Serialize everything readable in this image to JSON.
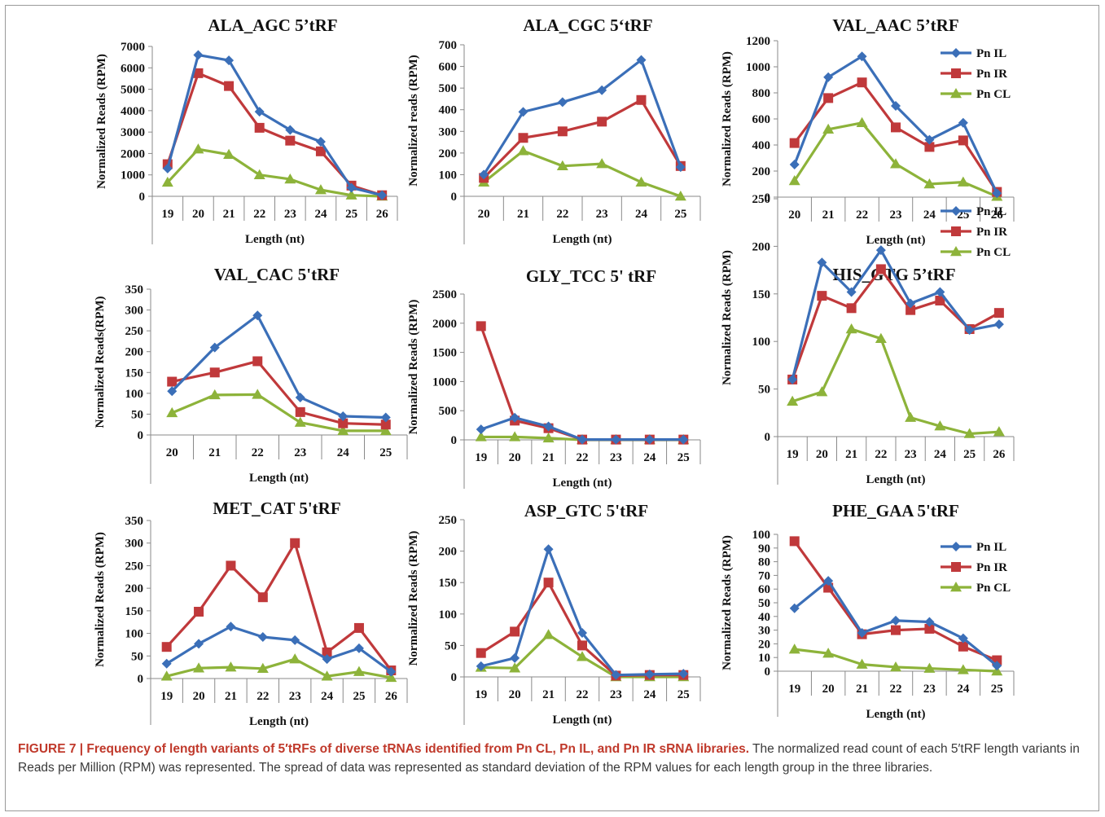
{
  "caption": {
    "bold": "FIGURE 7 | Frequency of length variants of 5′tRFs of diverse tRNAs identified from Pn CL, Pn IL, and Pn IR sRNA libraries.",
    "text": " The normalized read count of each 5′tRF length variants in Reads per Million (RPM) was represented. The spread of data was represented as standard deviation of the RPM values for each length group in the three libraries."
  },
  "series_colors": {
    "Pn IL": "#3b6fb8",
    "Pn IR": "#c0393b",
    "Pn CL": "#8db33a"
  },
  "chart_data": [
    {
      "type": "line",
      "title": "ALA_AGC  5’tRF",
      "xlabel": "Length (nt)",
      "ylabel": "Normalized Reads (RPM)",
      "categories": [
        "19",
        "20",
        "21",
        "22",
        "23",
        "24",
        "25",
        "26"
      ],
      "ylim": [
        0,
        7000
      ],
      "yticks": [
        0,
        1000,
        2000,
        3000,
        4000,
        5000,
        6000,
        7000
      ],
      "legend": "none",
      "series": [
        {
          "name": "Pn IL",
          "values": [
            1300,
            6600,
            6350,
            3950,
            3100,
            2550,
            400,
            50
          ]
        },
        {
          "name": "Pn IR",
          "values": [
            1500,
            5750,
            5150,
            3200,
            2600,
            2100,
            500,
            50
          ]
        },
        {
          "name": "Pn CL",
          "values": [
            650,
            2200,
            1950,
            1000,
            800,
            300,
            50,
            0
          ]
        }
      ]
    },
    {
      "type": "line",
      "title": "ALA_CGC 5‘tRF",
      "xlabel": "Length (nt)",
      "ylabel": "Normalized reads (RPM)",
      "categories": [
        "20",
        "21",
        "22",
        "23",
        "24",
        "25"
      ],
      "ylim": [
        0,
        700
      ],
      "yticks": [
        0,
        100,
        200,
        300,
        400,
        500,
        600,
        700
      ],
      "legend": "none",
      "series": [
        {
          "name": "Pn IL",
          "values": [
            100,
            390,
            435,
            490,
            630,
            135
          ]
        },
        {
          "name": "Pn IR",
          "values": [
            85,
            270,
            300,
            345,
            445,
            140
          ]
        },
        {
          "name": "Pn CL",
          "values": [
            65,
            210,
            140,
            150,
            65,
            0
          ]
        }
      ]
    },
    {
      "type": "line",
      "title": "VAL_AAC  5’tRF",
      "xlabel": "Length (nt)",
      "ylabel": "Normalized Reads (RPM)",
      "categories": [
        "20",
        "21",
        "22",
        "23",
        "24",
        "25",
        "26"
      ],
      "ylim": [
        0,
        1200
      ],
      "yticks": [
        0,
        200,
        400,
        600,
        800,
        1000,
        1200
      ],
      "legend": "top-right",
      "series": [
        {
          "name": "Pn IL",
          "values": [
            250,
            920,
            1080,
            700,
            440,
            570,
            30
          ]
        },
        {
          "name": "Pn IR",
          "values": [
            415,
            760,
            880,
            535,
            385,
            435,
            40
          ]
        },
        {
          "name": "Pn CL",
          "values": [
            125,
            520,
            570,
            255,
            100,
            115,
            5
          ]
        }
      ]
    },
    {
      "type": "line",
      "title": "VAL_CAC 5'tRF",
      "xlabel": "Length (nt)",
      "ylabel": "Normalized Reads(RPM)",
      "categories": [
        "20",
        "21",
        "22",
        "23",
        "24",
        "25"
      ],
      "ylim": [
        0,
        350
      ],
      "yticks": [
        0,
        50,
        100,
        150,
        200,
        250,
        300,
        350
      ],
      "legend": "none",
      "series": [
        {
          "name": "Pn IL",
          "values": [
            105,
            210,
            287,
            90,
            45,
            42
          ]
        },
        {
          "name": "Pn IR",
          "values": [
            128,
            150,
            177,
            55,
            28,
            25
          ]
        },
        {
          "name": "Pn CL",
          "values": [
            53,
            96,
            97,
            30,
            10,
            10
          ]
        }
      ]
    },
    {
      "type": "line",
      "title": "GLY_TCC 5' tRF",
      "xlabel": "Length (nt)",
      "ylabel": "Normalized Reads (RPM)",
      "categories": [
        "19",
        "20",
        "21",
        "22",
        "23",
        "24",
        "25"
      ],
      "ylim": [
        0,
        2500
      ],
      "yticks": [
        0,
        500,
        1000,
        1500,
        2000,
        2500
      ],
      "legend": "none",
      "series": [
        {
          "name": "Pn IL",
          "values": [
            180,
            380,
            230,
            5,
            5,
            5,
            5
          ]
        },
        {
          "name": "Pn IR",
          "values": [
            1950,
            330,
            200,
            5,
            5,
            5,
            5
          ]
        },
        {
          "name": "Pn CL",
          "values": [
            50,
            50,
            30,
            0,
            0,
            0,
            0
          ]
        }
      ]
    },
    {
      "type": "line",
      "title": "HIS_GTG 5’tRF",
      "xlabel": "Length (nt)",
      "ylabel": "Normalized Reads (RPM)",
      "categories": [
        "19",
        "20",
        "21",
        "22",
        "23",
        "24",
        "25",
        "26"
      ],
      "ylim": [
        0,
        250
      ],
      "yticks": [
        0,
        50,
        100,
        150,
        200,
        250
      ],
      "legend": "top-right",
      "series": [
        {
          "name": "Pn IL",
          "values": [
            60,
            183,
            152,
            196,
            140,
            152,
            112,
            118
          ]
        },
        {
          "name": "Pn IR",
          "values": [
            60,
            148,
            135,
            176,
            133,
            143,
            113,
            130
          ]
        },
        {
          "name": "Pn CL",
          "values": [
            37,
            47,
            113,
            103,
            20,
            11,
            3,
            5
          ]
        }
      ]
    },
    {
      "type": "line",
      "title": "MET_CAT 5'tRF",
      "xlabel": "Length (nt)",
      "ylabel": "Normalized Reads (RPM)",
      "categories": [
        "19",
        "20",
        "21",
        "22",
        "23",
        "24",
        "25",
        "26"
      ],
      "ylim": [
        0,
        350
      ],
      "yticks": [
        0,
        50,
        100,
        150,
        200,
        250,
        300,
        350
      ],
      "legend": "none",
      "series": [
        {
          "name": "Pn IL",
          "values": [
            33,
            77,
            115,
            92,
            85,
            43,
            67,
            15
          ]
        },
        {
          "name": "Pn IR",
          "values": [
            70,
            148,
            250,
            180,
            300,
            58,
            112,
            18
          ]
        },
        {
          "name": "Pn CL",
          "values": [
            5,
            23,
            25,
            22,
            43,
            5,
            15,
            2
          ]
        }
      ]
    },
    {
      "type": "line",
      "title": "ASP_GTC 5'tRF",
      "xlabel": "Length (nt)",
      "ylabel": "Normalized Reads (RPM)",
      "categories": [
        "19",
        "20",
        "21",
        "22",
        "23",
        "24",
        "25"
      ],
      "ylim": [
        0,
        250
      ],
      "yticks": [
        0,
        50,
        100,
        150,
        200,
        250
      ],
      "legend": "none",
      "series": [
        {
          "name": "Pn IL",
          "values": [
            17,
            30,
            203,
            70,
            3,
            4,
            5
          ]
        },
        {
          "name": "Pn IR",
          "values": [
            38,
            72,
            150,
            50,
            2,
            3,
            3
          ]
        },
        {
          "name": "Pn CL",
          "values": [
            15,
            14,
            67,
            32,
            0,
            0,
            0
          ]
        }
      ]
    },
    {
      "type": "line",
      "title": "PHE_GAA 5'tRF",
      "xlabel": "Length (nt)",
      "ylabel": "Normalized Reads (RPM)",
      "categories": [
        "19",
        "20",
        "21",
        "22",
        "23",
        "24",
        "25"
      ],
      "ylim": [
        0,
        100
      ],
      "yticks": [
        0,
        10,
        20,
        30,
        40,
        50,
        60,
        70,
        80,
        90,
        100
      ],
      "legend": "top-right",
      "series": [
        {
          "name": "Pn IL",
          "values": [
            46,
            66,
            28,
            37,
            36,
            24,
            4
          ]
        },
        {
          "name": "Pn IR",
          "values": [
            95,
            61,
            27,
            30,
            31,
            18,
            8
          ]
        },
        {
          "name": "Pn CL",
          "values": [
            16,
            13,
            5,
            3,
            2,
            1,
            0
          ]
        }
      ]
    }
  ]
}
